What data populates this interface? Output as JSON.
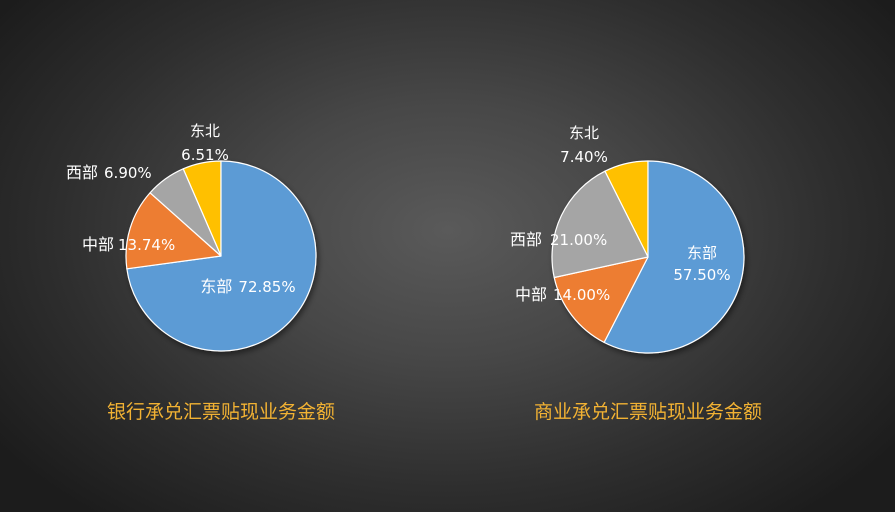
{
  "colors": {
    "east": "#5b9bd5",
    "central": "#ed7d31",
    "west": "#a5a5a5",
    "northeast": "#ffc000",
    "title": "#f2b233"
  },
  "chart_data": [
    {
      "type": "pie",
      "title": "银行承兑汇票贴现业务金额",
      "slices": [
        {
          "key": "northeast",
          "label": "东北",
          "value": 6.51,
          "value_text": "6.51%"
        },
        {
          "key": "east",
          "label": "东部",
          "value": 72.85,
          "value_text": "72.85%"
        },
        {
          "key": "central",
          "label": "中部",
          "value": 13.74,
          "value_text": "13.74%"
        },
        {
          "key": "west",
          "label": "西部",
          "value": 6.9,
          "value_text": "6.90%"
        }
      ]
    },
    {
      "type": "pie",
      "title": "商业承兑汇票贴现业务金额",
      "slices": [
        {
          "key": "northeast",
          "label": "东北",
          "value": 7.4,
          "value_text": "7.40%"
        },
        {
          "key": "east",
          "label": "东部",
          "value": 57.5,
          "value_text": "57.50%"
        },
        {
          "key": "central",
          "label": "中部",
          "value": 14.0,
          "value_text": "14.00%"
        },
        {
          "key": "west",
          "label": "西部",
          "value": 21.0,
          "value_text": "21.00%"
        }
      ]
    }
  ]
}
